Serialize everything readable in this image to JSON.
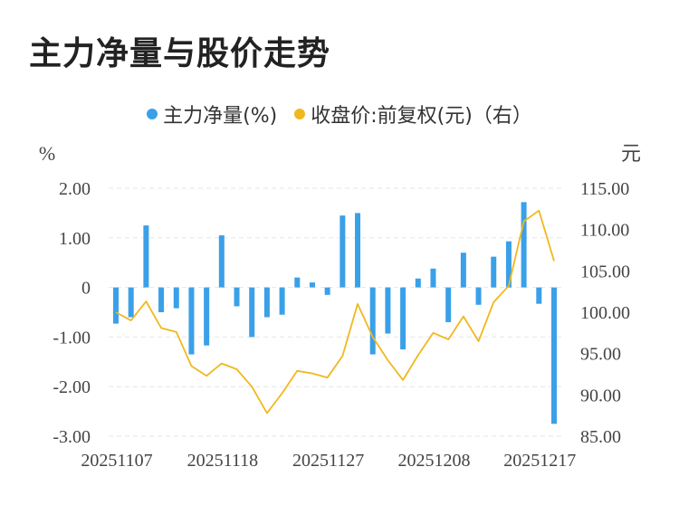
{
  "title": "主力净量与股价走势",
  "legend": {
    "bar_label": "主力净量(%)",
    "line_label": "收盘价:前复权(元)（右）"
  },
  "colors": {
    "bar": "#3aa0e8",
    "line": "#f0b81e",
    "grid": "#e6e6e6",
    "text": "#444444"
  },
  "chart_data": {
    "type": "bar",
    "title": "主力净量与股价走势",
    "left_axis": {
      "label": "%",
      "ylim": [
        -3,
        2
      ],
      "ticks": [
        "2.00",
        "1.00",
        "0",
        "-1.00",
        "-2.00",
        "-3.00"
      ],
      "tick_values": [
        2,
        1,
        0,
        -1,
        -2,
        -3
      ]
    },
    "right_axis": {
      "label": "元",
      "ylim": [
        85,
        115
      ],
      "ticks": [
        "115.00",
        "110.00",
        "105.00",
        "100.00",
        "95.00",
        "90.00",
        "85.00"
      ],
      "tick_values": [
        115,
        110,
        105,
        100,
        95,
        90,
        85
      ]
    },
    "x_tick_labels": [
      "20251107",
      "20251118",
      "20251127",
      "20251208",
      "20251217"
    ],
    "x_tick_indices": [
      0,
      7,
      14,
      21,
      28
    ],
    "grid": true,
    "series": [
      {
        "name": "主力净量(%)",
        "type": "bar",
        "axis": "left",
        "values": [
          -0.73,
          -0.6,
          1.25,
          -0.5,
          -0.42,
          -1.35,
          -1.17,
          1.05,
          -0.38,
          -1.0,
          -0.6,
          -0.55,
          0.2,
          0.1,
          -0.15,
          1.45,
          1.5,
          -1.35,
          -0.93,
          -1.25,
          0.18,
          0.38,
          -0.7,
          0.7,
          -0.35,
          0.62,
          0.93,
          1.72,
          -0.33,
          -2.75
        ]
      },
      {
        "name": "收盘价:前复权(元)（右）",
        "type": "line",
        "axis": "right",
        "values": [
          100.0,
          99.0,
          101.3,
          98.1,
          97.6,
          93.5,
          92.3,
          93.8,
          93.1,
          91.0,
          87.8,
          90.2,
          92.9,
          92.6,
          92.1,
          94.7,
          101.0,
          97.0,
          94.2,
          91.8,
          94.8,
          97.5,
          96.7,
          99.5,
          96.5,
          101.2,
          103.2,
          111.0,
          112.3,
          106.2
        ]
      }
    ]
  }
}
